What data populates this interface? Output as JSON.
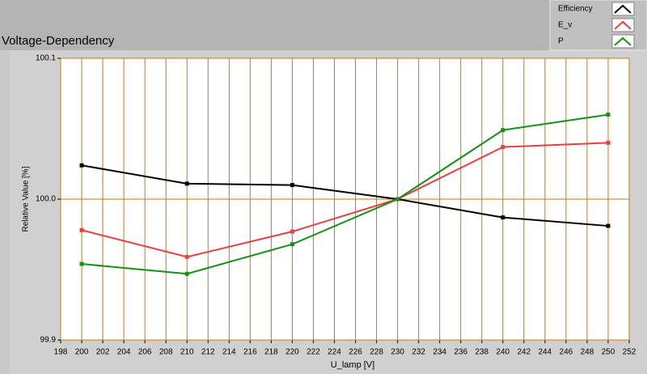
{
  "chart_data": {
    "type": "line",
    "title": "Voltage-Dependency",
    "x_label": "U_lamp [V]",
    "y_label": "Relative Value [%]",
    "x": [
      200,
      210,
      220,
      230,
      240,
      250
    ],
    "series": [
      {
        "name": "Efficiency",
        "color": "#000000",
        "values": [
          100.024,
          100.011,
          100.01,
          100.0,
          99.987,
          99.981
        ]
      },
      {
        "name": "E_v",
        "color": "#f03c3c",
        "values": [
          99.978,
          99.959,
          99.977,
          100.0,
          100.037,
          100.04
        ]
      },
      {
        "name": "P",
        "color": "#139313",
        "values": [
          99.954,
          99.947,
          99.968,
          100.0,
          100.049,
          100.06
        ]
      }
    ],
    "xlim": [
      198,
      252
    ],
    "xticks": [
      198,
      200,
      202,
      204,
      206,
      208,
      210,
      212,
      214,
      216,
      218,
      220,
      222,
      224,
      226,
      228,
      230,
      232,
      234,
      236,
      238,
      240,
      242,
      244,
      246,
      248,
      250,
      252
    ],
    "ylim": [
      99.9,
      100.1
    ],
    "yticks": [
      99.9,
      {
        "value": 100,
        "label": "100.0"
      },
      100.1
    ],
    "grid_color": "#c87810",
    "legend": "top-right"
  }
}
